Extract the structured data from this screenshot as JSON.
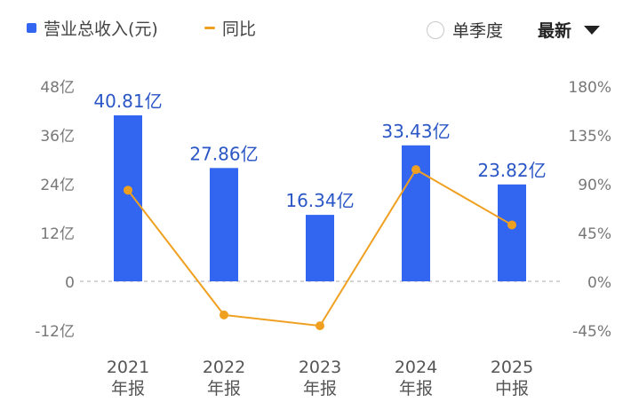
{
  "legend": {
    "revenue_label": "营业总收入(元)",
    "yoy_label": "同比"
  },
  "controls": {
    "quarter_toggle_label": "单季度",
    "period_select_value": "最新"
  },
  "colors": {
    "bar": "#3366f0",
    "line": "#f0a020",
    "axis_text": "#777777",
    "label_text": "#2a56c6",
    "zero_line": "#bbbbbb"
  },
  "chart_data": {
    "type": "bar",
    "categories": [
      [
        "2021",
        "年报"
      ],
      [
        "2022",
        "年报"
      ],
      [
        "2023",
        "年报"
      ],
      [
        "2024",
        "年报"
      ],
      [
        "2025",
        "中报"
      ]
    ],
    "series": [
      {
        "name": "营业总收入(元)",
        "type": "bar",
        "axis": "left",
        "values": [
          40.81,
          27.86,
          16.34,
          33.43,
          23.82
        ],
        "data_labels": [
          "40.81亿",
          "27.86亿",
          "16.34亿",
          "33.43亿",
          "23.82亿"
        ]
      },
      {
        "name": "同比",
        "type": "line",
        "axis": "right",
        "values": [
          84,
          -31,
          -41,
          103,
          52
        ]
      }
    ],
    "left_axis": {
      "ticks": [
        48,
        36,
        24,
        12,
        0,
        -12
      ],
      "tick_labels": [
        "48亿",
        "36亿",
        "24亿",
        "12亿",
        "0",
        "-12亿"
      ],
      "range": [
        -12,
        48
      ]
    },
    "right_axis": {
      "ticks": [
        180,
        135,
        90,
        45,
        0,
        -45
      ],
      "tick_labels": [
        "180%",
        "135%",
        "90%",
        "45%",
        "0%",
        "-45%"
      ],
      "range": [
        -45,
        180
      ]
    },
    "zero_line": "dashed",
    "grid": false
  }
}
